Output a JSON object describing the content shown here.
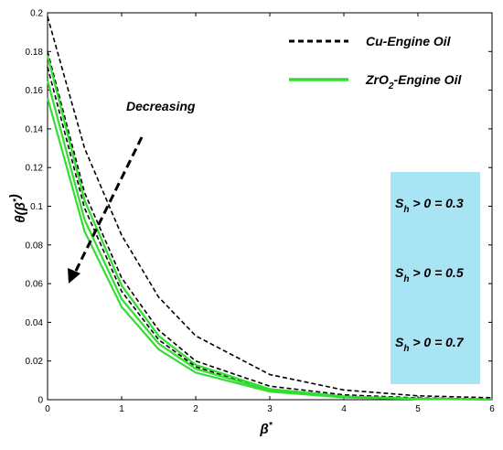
{
  "chart_data": {
    "type": "line",
    "xlabel": "β*",
    "ylabel": "θ(β*)",
    "xlim": [
      0,
      6
    ],
    "ylim": [
      0,
      0.2
    ],
    "xticks": [
      "0",
      "1",
      "2",
      "3",
      "4",
      "5",
      "6"
    ],
    "yticks": [
      "0",
      "0.02",
      "0.04",
      "0.06",
      "0.08",
      "0.1",
      "0.12",
      "0.14",
      "0.16",
      "0.18",
      "0.2"
    ],
    "grid": false,
    "legend": {
      "position": "top-right",
      "entries": [
        {
          "text": "Cu-Engine Oil",
          "style": "dashed",
          "color": "#000000"
        },
        {
          "text": "ZrO2-Engine Oil",
          "base": "ZrO",
          "sub": "2",
          "rest": "-Engine Oil",
          "style": "solid",
          "color": "#33dd33"
        }
      ]
    },
    "annotation": {
      "text": "Decreasing"
    },
    "param_box": {
      "color": "#a8e4f4",
      "labels": [
        {
          "base": "S",
          "sub": "h",
          "rest": " > 0 = 0.3"
        },
        {
          "base": "S",
          "sub": "h",
          "rest": " > 0 = 0.5"
        },
        {
          "base": "S",
          "sub": "h",
          "rest": " > 0 = 0.7"
        }
      ]
    },
    "series": [
      {
        "group": "Cu-Engine Oil",
        "style": "dashed",
        "color": "#000000",
        "points": [
          [
            0,
            0.198
          ],
          [
            0.5,
            0.13
          ],
          [
            1,
            0.085
          ],
          [
            1.5,
            0.053
          ],
          [
            2,
            0.033
          ],
          [
            3,
            0.013
          ],
          [
            4,
            0.005
          ],
          [
            5,
            0.002
          ],
          [
            6,
            0.001
          ]
        ]
      },
      {
        "group": "Cu-Engine Oil",
        "style": "dashed",
        "color": "#000000",
        "points": [
          [
            0,
            0.18
          ],
          [
            0.5,
            0.107
          ],
          [
            1,
            0.063
          ],
          [
            1.5,
            0.036
          ],
          [
            2,
            0.02
          ],
          [
            3,
            0.007
          ],
          [
            4,
            0.0025
          ],
          [
            5,
            0.0009
          ],
          [
            6,
            0.0003
          ]
        ]
      },
      {
        "group": "Cu-Engine Oil",
        "style": "dashed",
        "color": "#000000",
        "points": [
          [
            0,
            0.172
          ],
          [
            0.5,
            0.099
          ],
          [
            1,
            0.056
          ],
          [
            1.5,
            0.031
          ],
          [
            2,
            0.017
          ],
          [
            3,
            0.005
          ],
          [
            4,
            0.0016
          ],
          [
            5,
            0.0005
          ],
          [
            6,
            0.0002
          ]
        ]
      },
      {
        "group": "ZrO2-Engine Oil",
        "style": "solid",
        "color": "#33dd33",
        "points": [
          [
            0,
            0.178
          ],
          [
            0.5,
            0.103
          ],
          [
            1,
            0.059
          ],
          [
            1.5,
            0.033
          ],
          [
            2,
            0.018
          ],
          [
            3,
            0.0055
          ],
          [
            4,
            0.0017
          ],
          [
            5,
            0.0005
          ],
          [
            6,
            0.0002
          ]
        ]
      },
      {
        "group": "ZrO2-Engine Oil",
        "style": "solid",
        "color": "#33dd33",
        "points": [
          [
            0,
            0.165
          ],
          [
            0.5,
            0.093
          ],
          [
            1,
            0.052
          ],
          [
            1.5,
            0.029
          ],
          [
            2,
            0.016
          ],
          [
            3,
            0.0048
          ],
          [
            4,
            0.0014
          ],
          [
            5,
            0.0004
          ],
          [
            6,
            0.0001
          ]
        ]
      },
      {
        "group": "ZrO2-Engine Oil",
        "style": "solid",
        "color": "#33dd33",
        "points": [
          [
            0,
            0.156
          ],
          [
            0.5,
            0.087
          ],
          [
            1,
            0.048
          ],
          [
            1.5,
            0.026
          ],
          [
            2,
            0.014
          ],
          [
            3,
            0.0042
          ],
          [
            4,
            0.0012
          ],
          [
            5,
            0.0004
          ],
          [
            6,
            0.0001
          ]
        ]
      }
    ]
  }
}
